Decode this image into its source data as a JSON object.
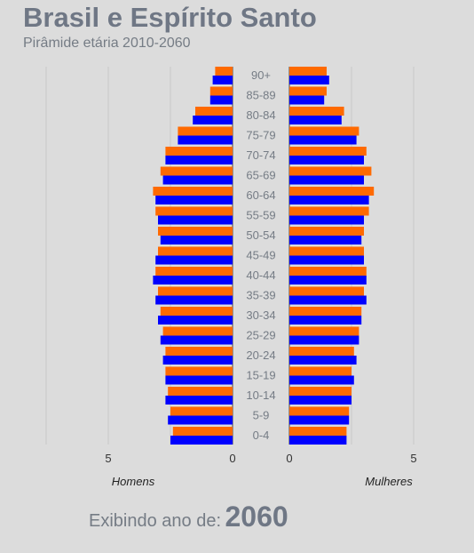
{
  "header": {
    "title": "Brasil e Espírito Santo",
    "subtitle": "Pirâmide etária 2010-2060"
  },
  "footer": {
    "label": "Exibindo ano de:",
    "year": "2060"
  },
  "colors": {
    "brasil": "#ff6a00",
    "espirito_santo": "#0000ff",
    "text": "#757c85",
    "background": "#dcdcdc",
    "grid": "#c8c8c8"
  },
  "chart_data": {
    "type": "bar",
    "orientation": "horizontal-pyramid",
    "categories": [
      "90+",
      "85-89",
      "80-84",
      "75-79",
      "70-74",
      "65-69",
      "60-64",
      "55-59",
      "50-54",
      "45-49",
      "40-44",
      "35-39",
      "30-34",
      "25-29",
      "20-24",
      "15-19",
      "10-14",
      "5-9",
      "0-4"
    ],
    "left_label": "Homens",
    "right_label": "Mulheres",
    "xlim": [
      0,
      7.5
    ],
    "ticks": [
      0,
      5
    ],
    "tick_labels": [
      "0",
      "5"
    ],
    "series": [
      {
        "side": "homens",
        "color": "#ff6a00",
        "values": [
          0.7,
          0.9,
          1.5,
          2.2,
          2.7,
          2.9,
          3.2,
          3.1,
          3.0,
          3.0,
          3.1,
          3.0,
          2.9,
          2.8,
          2.7,
          2.7,
          2.6,
          2.5,
          2.4
        ]
      },
      {
        "side": "homens",
        "color": "#0000ff",
        "values": [
          0.8,
          0.9,
          1.6,
          2.2,
          2.7,
          2.8,
          3.1,
          3.0,
          2.9,
          3.1,
          3.2,
          3.1,
          3.0,
          2.9,
          2.8,
          2.7,
          2.7,
          2.6,
          2.5
        ]
      },
      {
        "side": "mulheres",
        "color": "#ff6a00",
        "values": [
          1.5,
          1.5,
          2.2,
          2.8,
          3.1,
          3.3,
          3.4,
          3.2,
          3.0,
          3.0,
          3.1,
          3.0,
          2.9,
          2.8,
          2.6,
          2.5,
          2.5,
          2.4,
          2.3
        ]
      },
      {
        "side": "mulheres",
        "color": "#0000ff",
        "values": [
          1.6,
          1.4,
          2.1,
          2.7,
          3.0,
          3.0,
          3.2,
          3.0,
          2.9,
          3.0,
          3.1,
          3.1,
          2.9,
          2.8,
          2.7,
          2.6,
          2.5,
          2.4,
          2.3
        ]
      }
    ]
  }
}
